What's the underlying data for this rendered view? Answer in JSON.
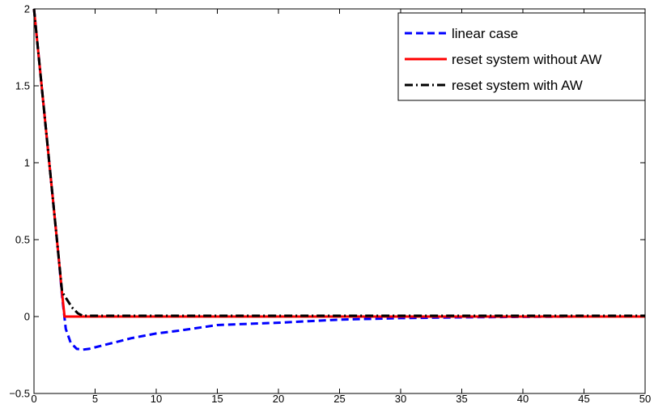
{
  "chart_data": {
    "type": "line",
    "title": "",
    "xlabel": "",
    "ylabel": "",
    "xlim": [
      0,
      50
    ],
    "ylim": [
      -0.5,
      2
    ],
    "xticks": [
      0,
      5,
      10,
      15,
      20,
      25,
      30,
      35,
      40,
      45,
      50
    ],
    "xtick_labels": [
      "0",
      "5",
      "10",
      "15",
      "20",
      "25",
      "30",
      "35",
      "40",
      "45",
      "50"
    ],
    "yticks": [
      -0.5,
      0,
      0.5,
      1,
      1.5,
      2
    ],
    "ytick_labels": [
      "−0.5",
      "0",
      "0.5",
      "1",
      "1.5",
      "2"
    ],
    "grid": false,
    "legend_position": "top-right",
    "series": [
      {
        "name": "linear case",
        "color": "#0000ff",
        "style": "dashed",
        "x": [
          0,
          0.5,
          1,
          1.5,
          2,
          2.3,
          2.6,
          3,
          3.5,
          4,
          4.5,
          5,
          6,
          7,
          8,
          10,
          12,
          15,
          20,
          25,
          30,
          35,
          40,
          45,
          50
        ],
        "y": [
          2,
          1.6,
          1.2,
          0.8,
          0.4,
          0.13,
          -0.08,
          -0.17,
          -0.21,
          -0.215,
          -0.21,
          -0.2,
          -0.18,
          -0.16,
          -0.14,
          -0.11,
          -0.09,
          -0.055,
          -0.04,
          -0.02,
          -0.01,
          -0.005,
          -0.002,
          0,
          0
        ]
      },
      {
        "name": "reset system without AW",
        "color": "#ff0000",
        "style": "solid",
        "x": [
          0,
          0.5,
          1,
          1.5,
          2,
          2.3,
          2.5,
          50
        ],
        "y": [
          2,
          1.6,
          1.2,
          0.8,
          0.4,
          0.15,
          0,
          0
        ]
      },
      {
        "name": "reset system with AW",
        "color": "#000000",
        "style": "dashdot",
        "x": [
          0,
          0.5,
          1,
          1.5,
          2,
          2.3,
          2.7,
          3.1,
          3.6,
          4,
          50
        ],
        "y": [
          2,
          1.6,
          1.2,
          0.8,
          0.4,
          0.16,
          0.11,
          0.06,
          0.02,
          0.005,
          0.005
        ]
      }
    ]
  }
}
